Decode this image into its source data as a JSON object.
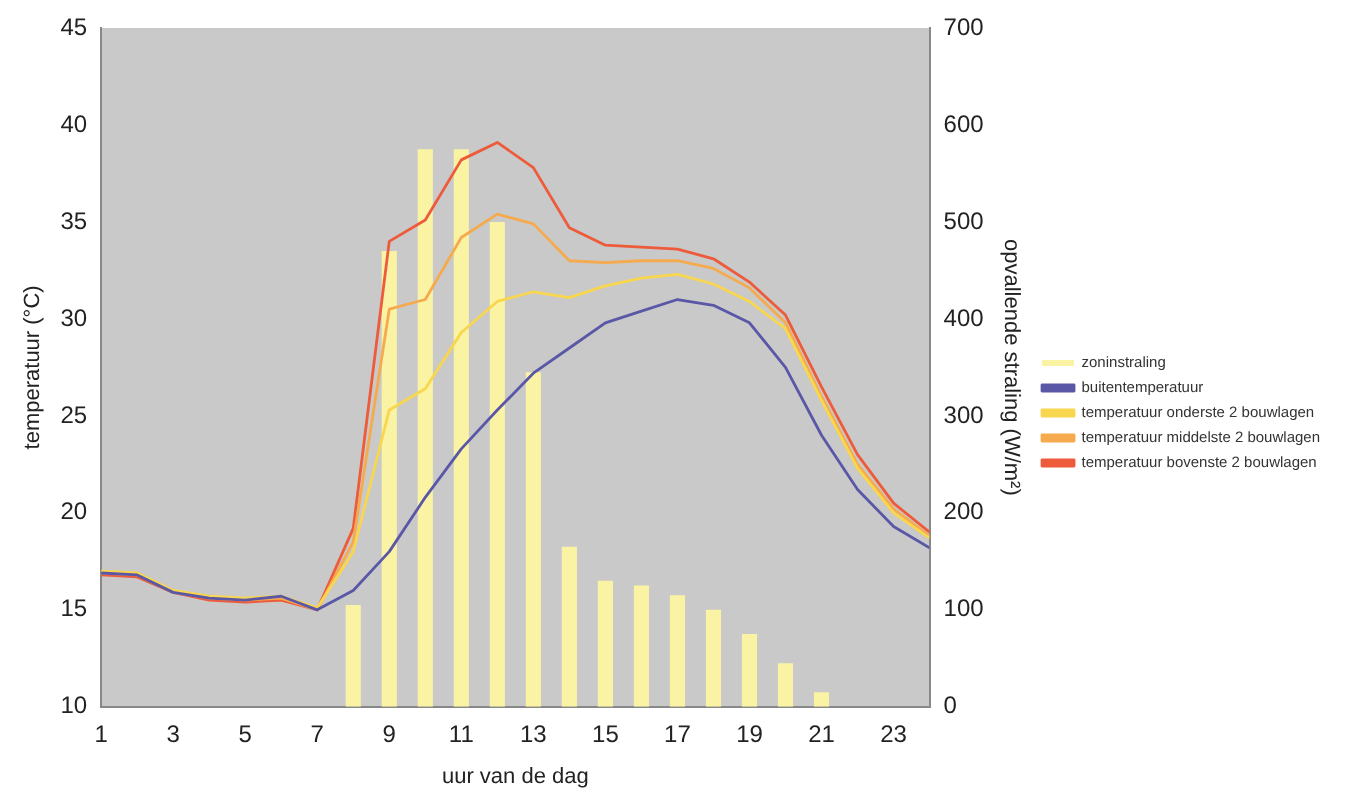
{
  "chart_data": {
    "type": "line",
    "xlabel": "uur van de dag",
    "ylabel": "temperatuur (°C)",
    "y2label": "opvallende straling (W/m²)",
    "x": [
      1,
      2,
      3,
      4,
      5,
      6,
      7,
      8,
      9,
      10,
      11,
      12,
      13,
      14,
      15,
      16,
      17,
      18,
      19,
      20,
      21,
      22,
      23,
      24
    ],
    "xlim": [
      1,
      24
    ],
    "xticks": [
      1,
      3,
      5,
      7,
      9,
      11,
      13,
      15,
      17,
      19,
      21,
      23
    ],
    "ylim": [
      10,
      45
    ],
    "yticks": [
      10,
      15,
      20,
      25,
      30,
      35,
      40,
      45
    ],
    "y2lim": [
      0,
      700
    ],
    "y2ticks": [
      0,
      100,
      200,
      300,
      400,
      500,
      600,
      700
    ],
    "grid": false,
    "legend": "right",
    "marker": "none",
    "line_style": "solid",
    "series": [
      {
        "name": "zoninstraling",
        "type": "bar",
        "axis": "y2",
        "color": "#fbf3a4",
        "values": [
          0,
          0,
          0,
          0,
          0,
          0,
          0,
          105,
          470,
          575,
          575,
          500,
          345,
          165,
          130,
          125,
          115,
          100,
          75,
          45,
          15,
          0,
          0,
          0
        ]
      },
      {
        "name": "buitentemperatuur",
        "color": "#5a58a6",
        "values": [
          16.9,
          16.8,
          15.9,
          15.6,
          15.5,
          15.7,
          15.0,
          16.0,
          18.0,
          20.8,
          23.3,
          25.3,
          27.2,
          28.5,
          29.8,
          30.4,
          31.0,
          30.7,
          29.8,
          27.5,
          24.0,
          21.2,
          19.3,
          18.2
        ]
      },
      {
        "name": "temperatuur onderste 2 bouwlagen",
        "color": "#f8d64e",
        "values": [
          17.0,
          16.9,
          16.0,
          15.7,
          15.6,
          15.7,
          15.1,
          18.0,
          25.3,
          26.4,
          29.3,
          30.9,
          31.4,
          31.1,
          31.7,
          32.1,
          32.3,
          31.8,
          30.9,
          29.5,
          25.8,
          22.3,
          20.0,
          18.7
        ]
      },
      {
        "name": "temperatuur middelste 2 bouwlagen",
        "color": "#f6aa4e",
        "values": [
          16.9,
          16.8,
          15.9,
          15.6,
          15.5,
          15.6,
          15.0,
          18.5,
          30.5,
          31.0,
          34.2,
          35.4,
          34.9,
          33.0,
          32.9,
          33.0,
          33.0,
          32.6,
          31.6,
          29.8,
          26.0,
          22.5,
          20.2,
          18.8
        ]
      },
      {
        "name": "temperatuur bovenste 2 bouwlagen",
        "color": "#ee5b3b",
        "values": [
          16.8,
          16.7,
          15.9,
          15.5,
          15.4,
          15.5,
          15.0,
          19.2,
          34.0,
          35.1,
          38.2,
          39.1,
          37.8,
          34.7,
          33.8,
          33.7,
          33.6,
          33.1,
          31.9,
          30.2,
          26.5,
          23.0,
          20.5,
          19.0
        ]
      }
    ]
  }
}
